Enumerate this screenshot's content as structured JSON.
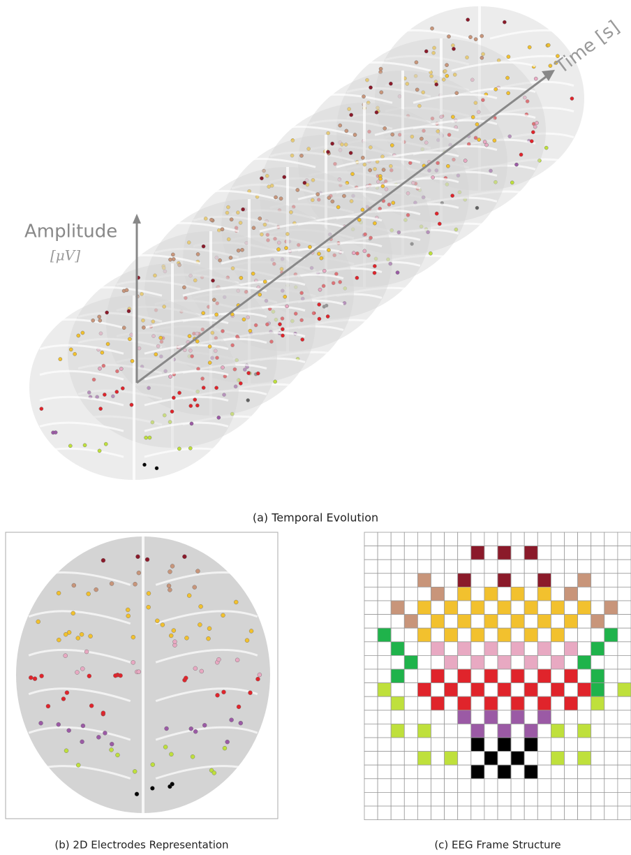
{
  "figure": {
    "time_axis_label": "Time [s]",
    "amplitude_axis_label": "Amplitude",
    "amplitude_unit": "[μV]",
    "caption_a": "(a) Temporal Evolution",
    "caption_b": "(b) 2D Electrodes Representation",
    "caption_c": "(c) EEG Frame Structure"
  }
}
